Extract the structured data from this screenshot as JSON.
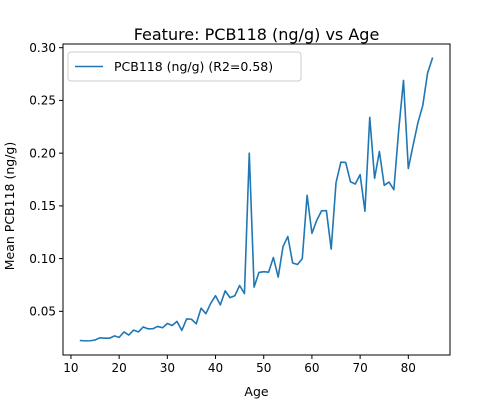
{
  "chart_data": {
    "type": "line",
    "title": "Feature: PCB118 (ng/g) vs Age",
    "xlabel": "Age",
    "ylabel": "Mean PCB118 (ng/g)",
    "xlim": [
      8.35,
      88.65
    ],
    "ylim": [
      0.0086,
      0.3035
    ],
    "xticks": [
      10,
      20,
      30,
      40,
      50,
      60,
      70,
      80
    ],
    "yticks": [
      0.05,
      0.1,
      0.15,
      0.2,
      0.25,
      0.3
    ],
    "ytick_labels": [
      "0.05",
      "0.10",
      "0.15",
      "0.20",
      "0.25",
      "0.30"
    ],
    "grid": false,
    "legend_position": "top-left",
    "series": [
      {
        "name": "PCB118 (ng/g) (R2=0.58)",
        "color": "#1f77b4",
        "x": [
          12,
          13,
          14,
          15,
          16,
          17,
          18,
          19,
          20,
          21,
          22,
          23,
          24,
          25,
          26,
          27,
          28,
          29,
          30,
          31,
          32,
          33,
          34,
          35,
          36,
          37,
          38,
          39,
          40,
          41,
          42,
          43,
          44,
          45,
          46,
          47,
          48,
          49,
          50,
          51,
          52,
          53,
          54,
          55,
          56,
          57,
          58,
          59,
          60,
          61,
          62,
          63,
          64,
          65,
          66,
          67,
          68,
          69,
          70,
          71,
          72,
          73,
          74,
          75,
          76,
          77,
          78,
          79,
          80,
          81,
          82,
          83,
          84,
          85
        ],
        "y": [
          0.0223,
          0.022,
          0.0221,
          0.0228,
          0.0249,
          0.0245,
          0.0245,
          0.0267,
          0.0253,
          0.0305,
          0.0275,
          0.0322,
          0.0305,
          0.0352,
          0.0334,
          0.0335,
          0.0357,
          0.0344,
          0.0385,
          0.0366,
          0.0405,
          0.0319,
          0.0428,
          0.0425,
          0.0382,
          0.053,
          0.0478,
          0.0576,
          0.0648,
          0.0561,
          0.0694,
          0.063,
          0.0648,
          0.0745,
          0.0668,
          0.2,
          0.073,
          0.0869,
          0.0876,
          0.0871,
          0.1011,
          0.0825,
          0.1114,
          0.121,
          0.0958,
          0.0944,
          0.1,
          0.16,
          0.124,
          0.1363,
          0.1453,
          0.1455,
          0.109,
          0.172,
          0.1914,
          0.1912,
          0.1729,
          0.1707,
          0.1796,
          0.145,
          0.234,
          0.1761,
          0.2016,
          0.1695,
          0.1726,
          0.1653,
          0.2215,
          0.269,
          0.1855,
          0.2076,
          0.229,
          0.2452,
          0.276,
          0.29
        ]
      }
    ]
  }
}
